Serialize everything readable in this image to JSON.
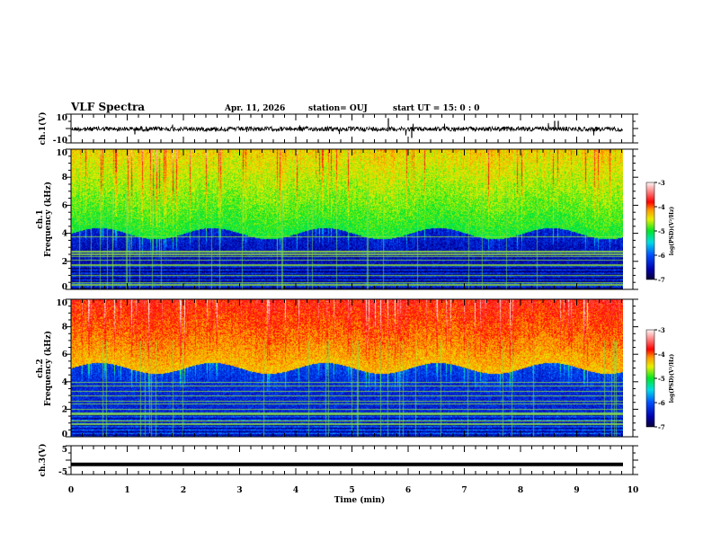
{
  "header": {
    "title": "VLF Spectra",
    "date": "Apr. 11, 2026",
    "station": "station= OUJ",
    "start": "start  UT =   15: 0  : 0"
  },
  "chart_data": [
    {
      "type": "line",
      "name": "ch1 waveform",
      "ylabel": "ch.1(V)",
      "ylim": [
        -10,
        10
      ],
      "yticks": [
        "10",
        "-10"
      ],
      "baseline": 0,
      "xlim": [
        0,
        10
      ]
    },
    {
      "type": "heatmap",
      "name": "ch1 spectrogram",
      "ylabel": "ch.1 Frequency (kHz)",
      "ylim": [
        0,
        10
      ],
      "yticks": [
        "0",
        "2",
        "4",
        "6",
        "8",
        "10"
      ],
      "xlim": [
        0,
        10
      ],
      "colorbar": {
        "label": "log(PSD)(V²/Hz)",
        "range": [
          -7,
          -3
        ],
        "ticks": [
          "-3",
          "-4",
          "-5",
          "-6",
          "-7"
        ]
      },
      "background_upper": -5.0,
      "background_lower": -6.5,
      "cutoff_khz": 4
    },
    {
      "type": "heatmap",
      "name": "ch2 spectrogram",
      "ylabel": "ch.2 Frequency (kHz)",
      "ylim": [
        0,
        10
      ],
      "yticks": [
        "0",
        "2",
        "4",
        "6",
        "8",
        "10"
      ],
      "xlim": [
        0,
        10
      ],
      "colorbar": {
        "label": "log(PSD)(V²/Hz)",
        "range": [
          -7,
          -3
        ],
        "ticks": [
          "-3",
          "-4",
          "-5",
          "-6",
          "-7"
        ]
      },
      "background_upper": -4.3,
      "background_lower": -6.3,
      "cutoff_khz": 5
    },
    {
      "type": "line",
      "name": "ch3 waveform",
      "ylabel": "ch.3(V)",
      "ylim": [
        -5,
        5
      ],
      "yticks": [
        "5",
        "-5"
      ],
      "baseline": -1.5,
      "xlim": [
        0,
        10
      ]
    }
  ],
  "xaxis": {
    "label": "Time  (min)",
    "ticks": [
      "0",
      "1",
      "2",
      "3",
      "4",
      "5",
      "6",
      "7",
      "8",
      "9",
      "10"
    ]
  }
}
